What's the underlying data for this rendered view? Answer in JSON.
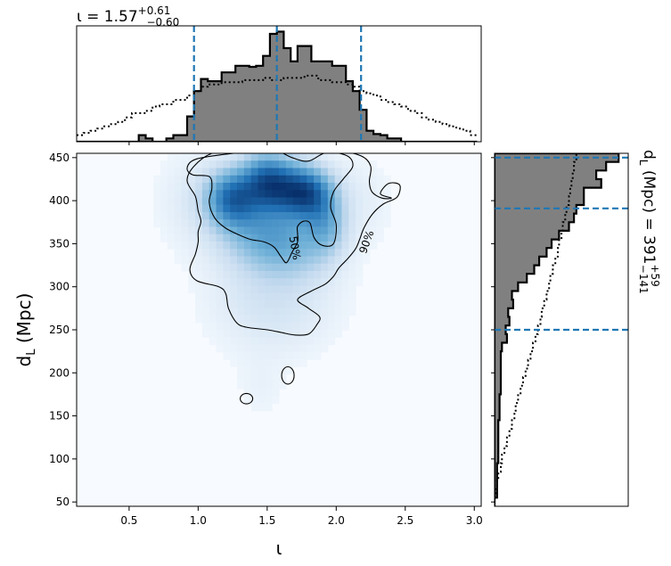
{
  "chart_data": [
    {
      "type": "histogram",
      "panel": "top-marginal",
      "title": {
        "base": "ι = 1.57",
        "sup": "+0.61",
        "sub": "−0.60"
      },
      "x_range": [
        0.12,
        3.05
      ],
      "dashed_lines": [
        0.97,
        1.57,
        2.18
      ],
      "bin_edges": [
        0.12,
        0.17,
        0.22,
        0.27,
        0.32,
        0.37,
        0.42,
        0.47,
        0.52,
        0.57,
        0.62,
        0.67,
        0.72,
        0.77,
        0.82,
        0.87,
        0.92,
        0.97,
        1.02,
        1.07,
        1.12,
        1.17,
        1.22,
        1.27,
        1.32,
        1.37,
        1.42,
        1.47,
        1.52,
        1.57,
        1.62,
        1.67,
        1.72,
        1.77,
        1.82,
        1.87,
        1.92,
        1.97,
        2.02,
        2.07,
        2.12,
        2.17,
        2.22,
        2.27,
        2.32,
        2.37,
        2.42,
        2.47,
        2.52,
        2.57,
        2.62,
        2.67,
        2.72,
        2.77,
        2.82,
        2.87,
        2.92,
        2.97,
        3.02
      ],
      "posterior_density": [
        0,
        0,
        0,
        0,
        0,
        0,
        0,
        0,
        0,
        0.06,
        0.03,
        0,
        0,
        0.03,
        0.06,
        0.06,
        0.23,
        0.46,
        0.57,
        0.55,
        0.55,
        0.63,
        0.63,
        0.69,
        0.69,
        0.68,
        0.69,
        0.78,
        0.98,
        1.0,
        0.85,
        0.73,
        0.87,
        0.87,
        0.73,
        0.73,
        0.73,
        0.69,
        0.69,
        0.55,
        0.46,
        0.29,
        0.1,
        0.07,
        0.06,
        0.03,
        0.03,
        0,
        0,
        0,
        0,
        0,
        0,
        0,
        0,
        0,
        0,
        0
      ],
      "prior_density": [
        0.06,
        0.08,
        0.1,
        0.12,
        0.14,
        0.16,
        0.18,
        0.22,
        0.26,
        0.26,
        0.28,
        0.32,
        0.34,
        0.34,
        0.38,
        0.38,
        0.42,
        0.46,
        0.5,
        0.52,
        0.52,
        0.54,
        0.54,
        0.54,
        0.56,
        0.56,
        0.56,
        0.58,
        0.56,
        0.56,
        0.58,
        0.58,
        0.58,
        0.6,
        0.6,
        0.56,
        0.56,
        0.54,
        0.54,
        0.52,
        0.5,
        0.46,
        0.44,
        0.42,
        0.38,
        0.36,
        0.34,
        0.32,
        0.28,
        0.26,
        0.22,
        0.2,
        0.18,
        0.16,
        0.14,
        0.12,
        0.1,
        0.06
      ]
    },
    {
      "type": "heatmap",
      "panel": "joint",
      "xlabel": "ι",
      "ylabel_base": "d",
      "ylabel_sub": "L",
      "ylabel_unit": " (Mpc)",
      "xlim": [
        0.12,
        3.05
      ],
      "ylim": [
        45,
        455
      ],
      "xticks": [
        0.5,
        1.0,
        1.5,
        2.0,
        2.5,
        3.0
      ],
      "xtick_labels": [
        "0.5",
        "1.0",
        "1.5",
        "2.0",
        "2.5",
        "3.0"
      ],
      "yticks": [
        50,
        100,
        150,
        200,
        250,
        300,
        350,
        400,
        450
      ],
      "ytick_labels": [
        "50",
        "100",
        "150",
        "200",
        "250",
        "300",
        "350",
        "400",
        "450"
      ],
      "colormap": [
        "#f7fbff",
        "#c6dbef",
        "#6baed6",
        "#2171b5",
        "#08306b"
      ],
      "density_peaks": [
        {
          "x": 1.25,
          "y": 403,
          "sx": 0.13,
          "sy": 22,
          "w": 1.0
        },
        {
          "x": 1.48,
          "y": 425,
          "sx": 0.12,
          "sy": 22,
          "w": 0.75
        },
        {
          "x": 1.62,
          "y": 415,
          "sx": 0.14,
          "sy": 22,
          "w": 0.8
        },
        {
          "x": 1.8,
          "y": 408,
          "sx": 0.12,
          "sy": 20,
          "w": 0.95
        },
        {
          "x": 1.92,
          "y": 375,
          "sx": 0.1,
          "sy": 25,
          "w": 0.45
        },
        {
          "x": 1.45,
          "y": 365,
          "sx": 0.2,
          "sy": 28,
          "w": 0.5
        },
        {
          "x": 1.7,
          "y": 348,
          "sx": 0.2,
          "sy": 26,
          "w": 0.35
        },
        {
          "x": 1.55,
          "y": 290,
          "sx": 0.3,
          "sy": 45,
          "w": 0.2
        },
        {
          "x": 1.0,
          "y": 400,
          "sx": 0.2,
          "sy": 40,
          "w": 0.12
        },
        {
          "x": 2.1,
          "y": 400,
          "sx": 0.2,
          "sy": 35,
          "w": 0.1
        },
        {
          "x": 1.45,
          "y": 180,
          "sx": 0.12,
          "sy": 25,
          "w": 0.05
        }
      ],
      "contour_50": {
        "label": "50%",
        "points": [
          [
            1.45,
            458
          ],
          [
            1.2,
            454
          ],
          [
            0.98,
            448
          ],
          [
            0.92,
            438
          ],
          [
            0.96,
            430
          ],
          [
            1.08,
            428
          ],
          [
            1.1,
            415
          ],
          [
            1.08,
            398
          ],
          [
            1.12,
            380
          ],
          [
            1.2,
            368
          ],
          [
            1.3,
            360
          ],
          [
            1.38,
            355
          ],
          [
            1.48,
            352
          ],
          [
            1.55,
            346
          ],
          [
            1.6,
            335
          ],
          [
            1.64,
            328
          ],
          [
            1.68,
            340
          ],
          [
            1.72,
            352
          ],
          [
            1.72,
            362
          ],
          [
            1.72,
            370
          ],
          [
            1.76,
            376
          ],
          [
            1.81,
            374
          ],
          [
            1.84,
            357
          ],
          [
            1.9,
            348
          ],
          [
            1.98,
            350
          ],
          [
            2.0,
            372
          ],
          [
            1.96,
            392
          ],
          [
            1.98,
            410
          ],
          [
            2.05,
            425
          ],
          [
            2.12,
            440
          ],
          [
            2.08,
            452
          ],
          [
            1.93,
            456
          ],
          [
            1.8,
            446
          ],
          [
            1.68,
            450
          ],
          [
            1.57,
            458
          ]
        ],
        "label_at": [
          1.7,
          345
        ],
        "label_rot": 80
      },
      "contour_90": {
        "label": "90%",
        "points": [
          [
            1.3,
            460
          ],
          [
            1.1,
            455
          ],
          [
            0.97,
            440
          ],
          [
            0.92,
            423
          ],
          [
            0.98,
            405
          ],
          [
            1.0,
            388
          ],
          [
            1.02,
            376
          ],
          [
            1.0,
            364
          ],
          [
            1.0,
            352
          ],
          [
            0.98,
            338
          ],
          [
            0.94,
            320
          ],
          [
            0.99,
            307
          ],
          [
            1.15,
            300
          ],
          [
            1.2,
            292
          ],
          [
            1.22,
            275
          ],
          [
            1.28,
            258
          ],
          [
            1.35,
            253
          ],
          [
            1.5,
            250
          ],
          [
            1.6,
            247
          ],
          [
            1.7,
            244
          ],
          [
            1.8,
            245
          ],
          [
            1.86,
            256
          ],
          [
            1.88,
            265
          ],
          [
            1.8,
            275
          ],
          [
            1.72,
            285
          ],
          [
            1.82,
            295
          ],
          [
            1.92,
            303
          ],
          [
            1.98,
            312
          ],
          [
            2.02,
            322
          ],
          [
            2.08,
            332
          ],
          [
            2.14,
            344
          ],
          [
            2.17,
            355
          ],
          [
            2.2,
            368
          ],
          [
            2.26,
            384
          ],
          [
            2.34,
            396
          ],
          [
            2.44,
            404
          ],
          [
            2.46,
            418
          ],
          [
            2.38,
            420
          ],
          [
            2.32,
            408
          ],
          [
            2.4,
            403
          ],
          [
            2.33,
            403
          ],
          [
            2.26,
            410
          ],
          [
            2.24,
            422
          ],
          [
            2.25,
            440
          ],
          [
            2.18,
            452
          ],
          [
            2.0,
            458
          ],
          [
            1.7,
            459
          ]
        ],
        "label_at": [
          2.22,
          352
        ],
        "label_rot": -70
      },
      "islands": [
        {
          "cx": 1.35,
          "cy": 170,
          "rx": 0.045,
          "ry": 6
        },
        {
          "cx": 1.65,
          "cy": 197,
          "rx": 0.045,
          "ry": 10
        }
      ]
    },
    {
      "type": "histogram",
      "panel": "right-marginal",
      "label": {
        "base": "d",
        "sub": "L",
        "mid": " (Mpc) = 391",
        "sup": "+59",
        "sub2": "−141"
      },
      "y_range": [
        45,
        455
      ],
      "dashed_lines": [
        250,
        391,
        450
      ],
      "bin_edges": [
        45,
        55,
        65,
        75,
        85,
        95,
        105,
        115,
        125,
        135,
        145,
        155,
        165,
        175,
        185,
        195,
        205,
        215,
        225,
        235,
        245,
        255,
        265,
        275,
        285,
        295,
        305,
        315,
        325,
        335,
        345,
        355,
        365,
        375,
        385,
        395,
        405,
        415,
        425,
        435,
        445,
        455
      ],
      "posterior_density": [
        0,
        0.02,
        0.02,
        0.02,
        0.02,
        0.03,
        0.03,
        0.03,
        0.03,
        0.03,
        0.04,
        0.04,
        0.04,
        0.05,
        0.05,
        0.05,
        0.05,
        0.05,
        0.06,
        0.1,
        0.09,
        0.12,
        0.11,
        0.15,
        0.14,
        0.19,
        0.26,
        0.32,
        0.36,
        0.42,
        0.46,
        0.52,
        0.6,
        0.64,
        0.66,
        0.72,
        0.72,
        0.86,
        0.82,
        0.9,
        1.0
      ],
      "prior_density": [
        0.0,
        0.01,
        0.02,
        0.03,
        0.05,
        0.06,
        0.08,
        0.1,
        0.12,
        0.14,
        0.16,
        0.17,
        0.19,
        0.21,
        0.23,
        0.25,
        0.27,
        0.29,
        0.31,
        0.33,
        0.35,
        0.37,
        0.38,
        0.4,
        0.42,
        0.44,
        0.45,
        0.47,
        0.49,
        0.51,
        0.52,
        0.54,
        0.55,
        0.57,
        0.58,
        0.6,
        0.61,
        0.62,
        0.63,
        0.64,
        0.66
      ]
    }
  ]
}
